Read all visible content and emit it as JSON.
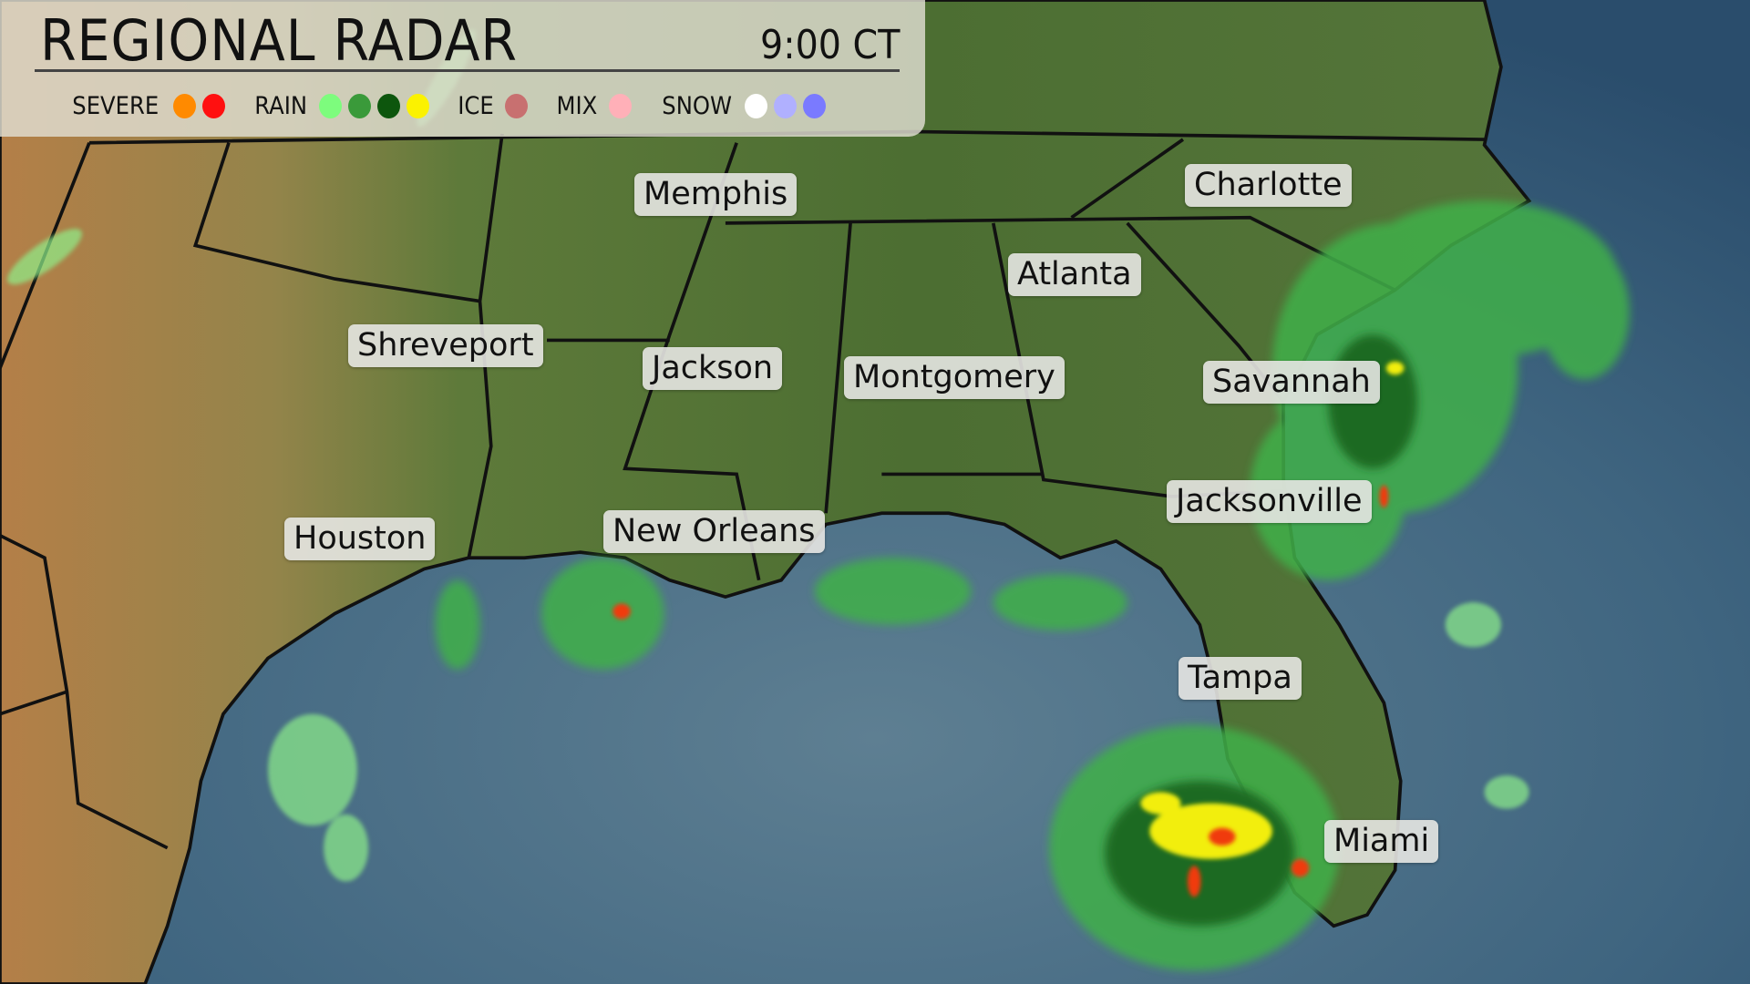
{
  "header": {
    "title": "REGIONAL RADAR",
    "time": "9:00 CT"
  },
  "legend": [
    {
      "label": "SEVERE",
      "colors": [
        "#ff8a00",
        "#ff1010"
      ]
    },
    {
      "label": "RAIN",
      "colors": [
        "#7dfc7d",
        "#3a9a3a",
        "#0d560d",
        "#fbf200"
      ]
    },
    {
      "label": "ICE",
      "colors": [
        "#c87070"
      ]
    },
    {
      "label": "MIX",
      "colors": [
        "#ffb0b8"
      ]
    },
    {
      "label": "SNOW",
      "colors": [
        "#ffffff",
        "#b0b0ff",
        "#7a7aff"
      ]
    }
  ],
  "cities": [
    {
      "name": "Memphis"
    },
    {
      "name": "Charlotte"
    },
    {
      "name": "Atlanta"
    },
    {
      "name": "Shreveport"
    },
    {
      "name": "Jackson"
    },
    {
      "name": "Montgomery"
    },
    {
      "name": "Savannah"
    },
    {
      "name": "Jacksonville"
    },
    {
      "name": "Houston"
    },
    {
      "name": "New Orleans"
    },
    {
      "name": "Tampa"
    },
    {
      "name": "Miami"
    }
  ]
}
